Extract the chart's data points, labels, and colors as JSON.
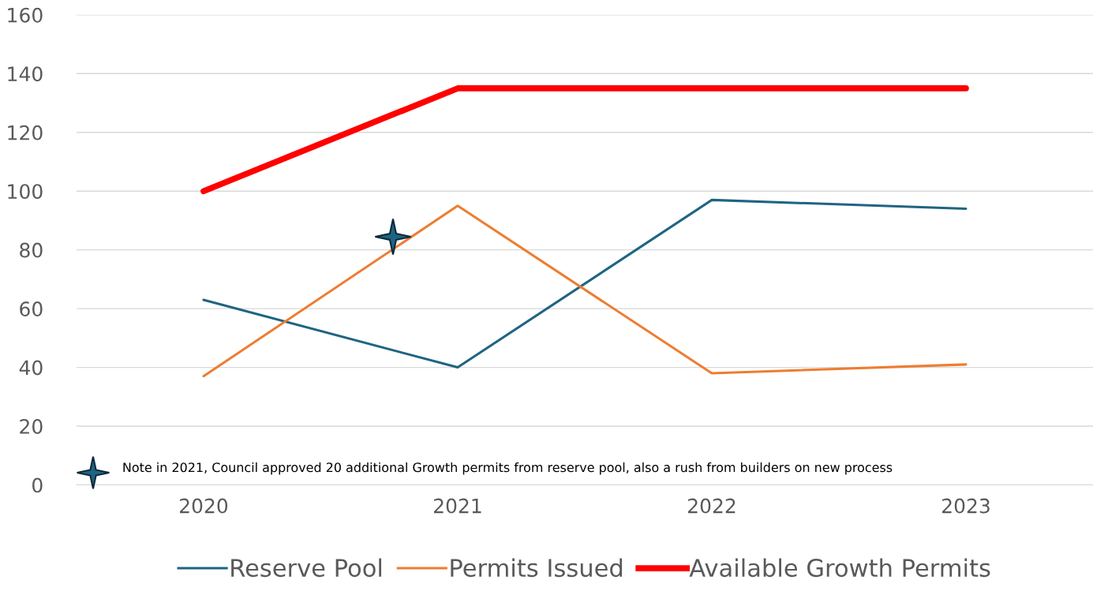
{
  "chart_data": {
    "type": "line",
    "categories": [
      "2020",
      "2021",
      "2022",
      "2023"
    ],
    "series": [
      {
        "name": "Reserve Pool",
        "color": "#1f6482",
        "values": [
          63,
          40,
          97,
          94
        ]
      },
      {
        "name": "Permits Issued",
        "color": "#ed7d31",
        "values": [
          37,
          95,
          38,
          41
        ]
      },
      {
        "name": "Available Growth Permits",
        "color": "#ff0000",
        "values": [
          100,
          135,
          135,
          135
        ]
      }
    ],
    "ylim": [
      0,
      160
    ],
    "yticks": [
      0,
      20,
      40,
      60,
      80,
      100,
      120,
      140,
      160
    ],
    "grid": "y",
    "legend": "bottom",
    "marker": "none",
    "line_style": "solid",
    "annotations": [
      "Note in 2021, Council approved 20 additional Growth permits from reserve pool, also a rush from builders on new process"
    ]
  }
}
